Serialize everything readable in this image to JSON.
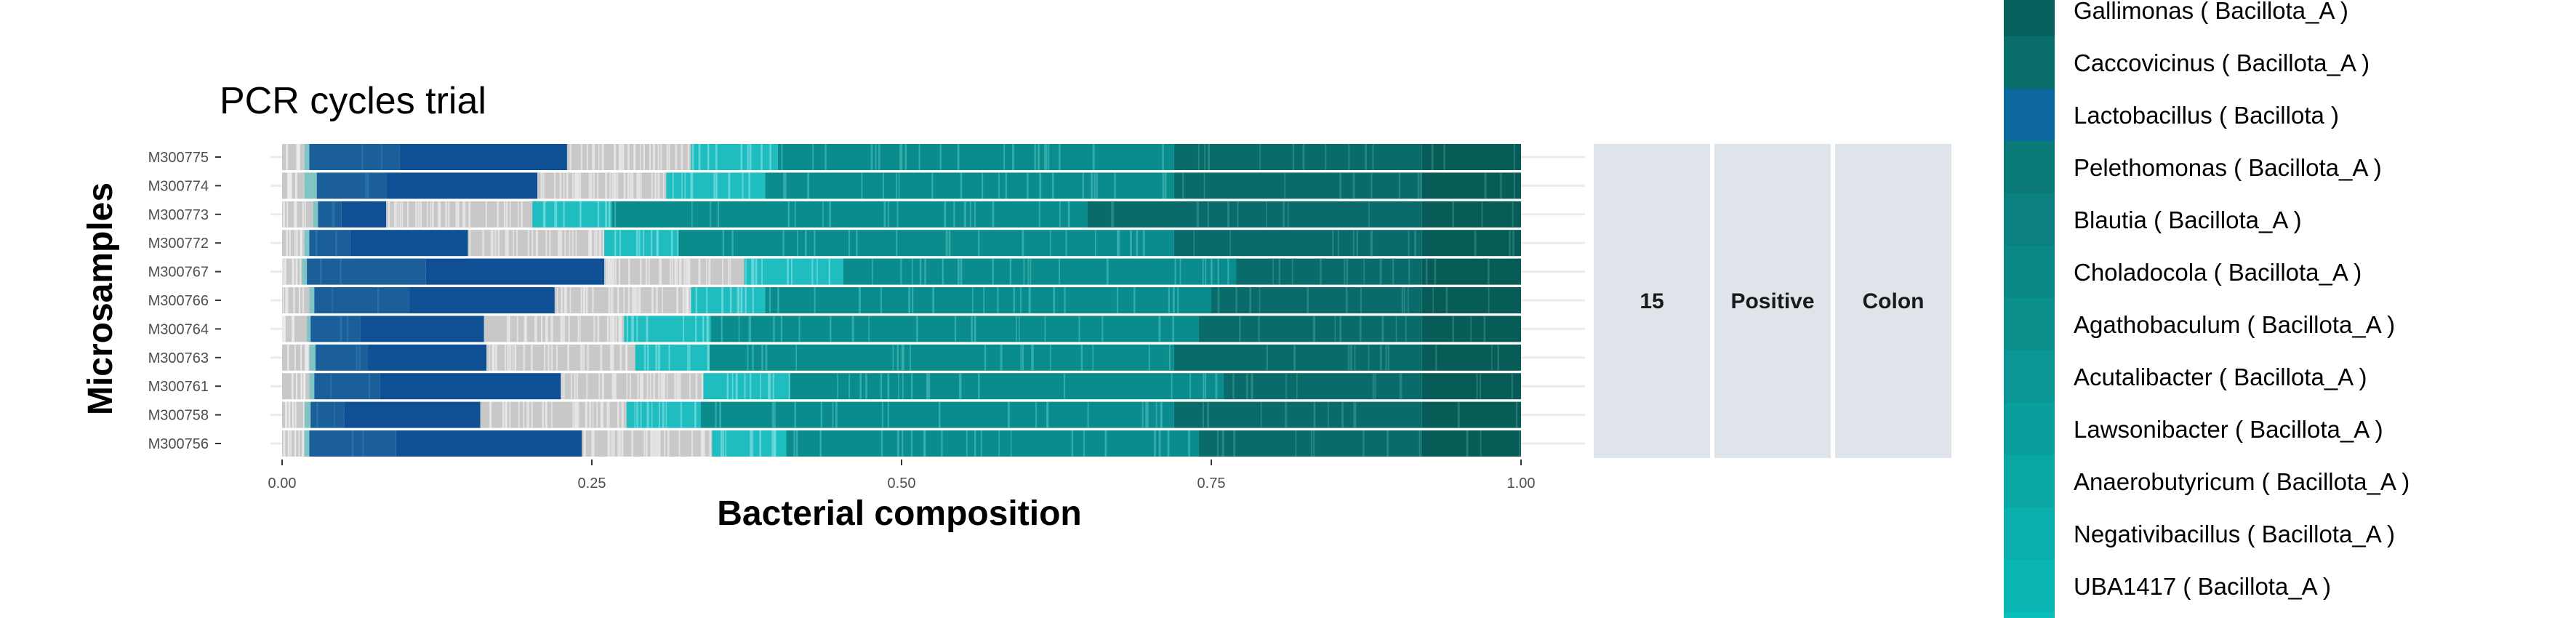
{
  "chart_data": {
    "type": "bar",
    "orientation": "horizontal",
    "stacked": true,
    "title": "PCR cycles trial",
    "xlabel": "Bacterial composition",
    "ylabel": "Microsamples",
    "xlim": [
      0,
      1
    ],
    "x_ticks": [
      "0.00",
      "0.25",
      "0.50",
      "0.75",
      "1.00"
    ],
    "grid": true,
    "categories": [
      "M300775",
      "M300774",
      "M300773",
      "M300772",
      "M300767",
      "M300766",
      "M300764",
      "M300763",
      "M300761",
      "M300758",
      "M300756"
    ],
    "facet_strips": [
      "15",
      "Positive",
      "Colon"
    ],
    "segment_colors": {
      "other_grey": "#c8c8c8",
      "pale_teal": "#80c4c4",
      "mid_blue": "#1a5f9a",
      "dark_blue": "#0f4f94",
      "cyan": "#1fbcc0",
      "teal": "#0a8c8c",
      "dark_teal": "#0a6c6a",
      "darkest_teal": "#075c58"
    },
    "series": [
      {
        "name": "",
        "values": [
          0.018,
          0.018,
          0.025,
          0.018,
          0.016,
          0.022,
          0.02,
          0.022,
          0.022,
          0.018,
          0.018
        ]
      },
      {
        "name": "",
        "values": [
          0.004,
          0.01,
          0.004,
          0.004,
          0.004,
          0.004,
          0.003,
          0.005,
          0.004,
          0.005,
          0.004
        ]
      },
      {
        "name": "",
        "values": [
          0.073,
          0.056,
          0.019,
          0.033,
          0.096,
          0.077,
          0.04,
          0.042,
          0.053,
          0.027,
          0.07
        ]
      },
      {
        "name": "",
        "values": [
          0.135,
          0.122,
          0.036,
          0.095,
          0.144,
          0.117,
          0.1,
          0.096,
          0.146,
          0.11,
          0.15
        ]
      },
      {
        "name": "",
        "values": [
          0.1,
          0.104,
          0.118,
          0.11,
          0.113,
          0.11,
          0.113,
          0.12,
          0.115,
          0.118,
          0.105
        ]
      },
      {
        "name": "",
        "values": [
          0.07,
          0.08,
          0.064,
          0.06,
          0.08,
          0.06,
          0.07,
          0.06,
          0.07,
          0.06,
          0.06
        ]
      },
      {
        "name": "",
        "values": [
          0.32,
          0.33,
          0.384,
          0.4,
          0.317,
          0.36,
          0.394,
          0.375,
          0.35,
          0.382,
          0.333
        ]
      },
      {
        "name": "",
        "values": [
          0.2,
          0.2,
          0.27,
          0.2,
          0.15,
          0.17,
          0.18,
          0.2,
          0.16,
          0.2,
          0.18
        ]
      },
      {
        "name": "",
        "values": [
          0.08,
          0.08,
          0.08,
          0.08,
          0.08,
          0.08,
          0.08,
          0.08,
          0.08,
          0.08,
          0.08
        ]
      }
    ],
    "legend": {
      "placement": "right",
      "entries": [
        {
          "label": "Gallimonas ( Bacillota_A )",
          "color": "#07605c"
        },
        {
          "label": "Caccovicinus ( Bacillota_A )",
          "color": "#0a6e6b"
        },
        {
          "label": "Lactobacillus ( Bacillota )",
          "color": "#0e68a0"
        },
        {
          "label": "Pelethomonas ( Bacillota_A )",
          "color": "#0a7a78"
        },
        {
          "label": "Blautia ( Bacillota_A )",
          "color": "#0a8180"
        },
        {
          "label": "Choladocola ( Bacillota_A )",
          "color": "#0a8886"
        },
        {
          "label": "Agathobaculum ( Bacillota_A )",
          "color": "#0a8f8d"
        },
        {
          "label": "Acutalibacter ( Bacillota_A )",
          "color": "#0a9694"
        },
        {
          "label": "Lawsonibacter ( Bacillota_A )",
          "color": "#0a9e9c"
        },
        {
          "label": "Anaerobutyricum ( Bacillota_A )",
          "color": "#0aa6a4"
        },
        {
          "label": "Negativibacillus ( Bacillota_A )",
          "color": "#0aaeac"
        },
        {
          "label": "UBA1417 ( Bacillota_A )",
          "color": "#0ab6b4"
        }
      ]
    }
  }
}
